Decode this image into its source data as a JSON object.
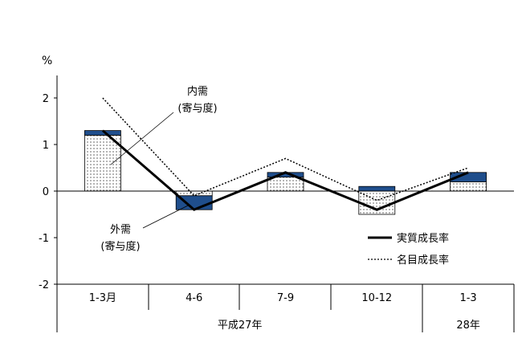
{
  "chart_data": {
    "type": "bar",
    "unit_label": "%",
    "ylim": [
      -2,
      2
    ],
    "yticks": [
      "2",
      "1",
      "0",
      "-1",
      "-2"
    ],
    "categories": [
      "1-3月",
      "4-6",
      "7-9",
      "10-12",
      "1-3"
    ],
    "year_groups": [
      {
        "label": "平成27年",
        "span": [
          0,
          3
        ]
      },
      {
        "label": "28年",
        "span": [
          4,
          4
        ]
      }
    ],
    "series": [
      {
        "name": "内需",
        "kind": "bar-stack",
        "values": [
          1.2,
          -0.1,
          0.3,
          -0.5,
          0.2
        ],
        "pattern": "dots"
      },
      {
        "name": "外需",
        "kind": "bar-stack",
        "values": [
          0.1,
          -0.3,
          0.1,
          0.1,
          0.2
        ],
        "color": "#1f4e8c"
      },
      {
        "name": "実質成長率",
        "kind": "line",
        "values": [
          1.3,
          -0.4,
          0.4,
          -0.4,
          0.4
        ],
        "style": "solid"
      },
      {
        "name": "名目成長率",
        "kind": "line",
        "values": [
          2.0,
          -0.1,
          0.7,
          -0.2,
          0.5
        ],
        "style": "dotted"
      }
    ],
    "annotations": [
      {
        "line1": "内需",
        "line2": "(寄与度)"
      },
      {
        "line1": "外需",
        "line2": "(寄与度)"
      }
    ],
    "legend": {
      "placement": "bottom-right",
      "items": [
        {
          "label": "実質成長率",
          "style": "solid"
        },
        {
          "label": "名目成長率",
          "style": "dotted"
        }
      ]
    },
    "grid": false
  }
}
